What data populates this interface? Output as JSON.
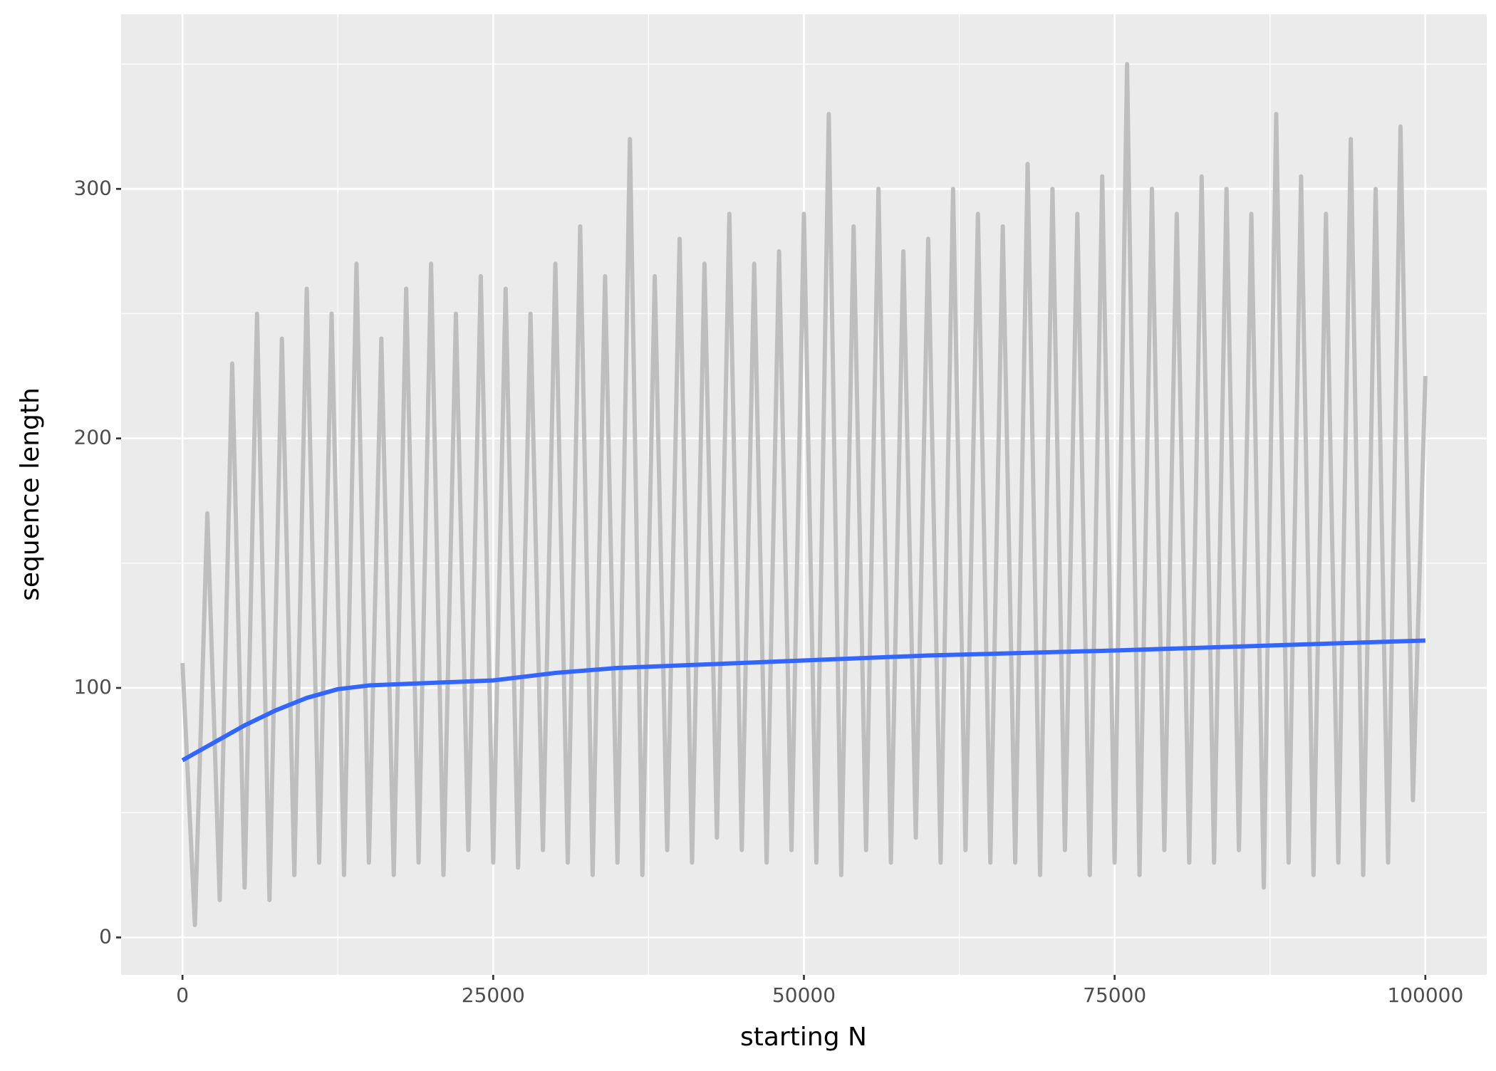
{
  "chart_data": {
    "type": "line",
    "x_label": "starting N",
    "y_label": "sequence length",
    "xlim": [
      -4938,
      104938
    ],
    "ylim": [
      -15,
      370
    ],
    "xticks": [
      0,
      25000,
      50000,
      75000,
      100000
    ],
    "yticks": [
      0,
      100,
      200,
      300
    ],
    "x_minor": [
      12500,
      37500,
      62500,
      87500
    ],
    "y_minor": [
      50,
      150,
      250,
      350
    ],
    "grid": true,
    "series": [
      {
        "color": "#bebebe",
        "x": [
          0,
          1000,
          2000,
          3000,
          4000,
          5000,
          6000,
          7000,
          8000,
          9000,
          10000,
          11000,
          12000,
          13000,
          14000,
          15000,
          16000,
          17000,
          18000,
          19000,
          20000,
          21000,
          22000,
          23000,
          24000,
          25000,
          26000,
          27000,
          28000,
          29000,
          30000,
          31000,
          32000,
          33000,
          34000,
          35000,
          36000,
          37000,
          38000,
          39000,
          40000,
          41000,
          42000,
          43000,
          44000,
          45000,
          46000,
          47000,
          48000,
          49000,
          50000,
          51000,
          52000,
          53000,
          54000,
          55000,
          56000,
          57000,
          58000,
          59000,
          60000,
          61000,
          62000,
          63000,
          64000,
          65000,
          66000,
          67000,
          68000,
          69000,
          70000,
          71000,
          72000,
          73000,
          74000,
          75000,
          76000,
          77000,
          78000,
          79000,
          80000,
          81000,
          82000,
          83000,
          84000,
          85000,
          86000,
          87000,
          88000,
          89000,
          90000,
          91000,
          92000,
          93000,
          94000,
          95000,
          96000,
          97000,
          98000,
          99000,
          100000
        ],
        "values": [
          110,
          5,
          170,
          15,
          230,
          20,
          250,
          15,
          240,
          25,
          260,
          30,
          250,
          25,
          270,
          30,
          240,
          25,
          260,
          30,
          270,
          25,
          250,
          35,
          265,
          30,
          260,
          28,
          250,
          35,
          270,
          30,
          285,
          25,
          265,
          30,
          320,
          25,
          265,
          35,
          280,
          30,
          270,
          40,
          290,
          35,
          270,
          30,
          275,
          35,
          290,
          30,
          330,
          25,
          285,
          35,
          300,
          30,
          275,
          40,
          280,
          30,
          300,
          35,
          290,
          30,
          285,
          30,
          310,
          25,
          300,
          35,
          290,
          25,
          305,
          30,
          350,
          25,
          300,
          35,
          290,
          30,
          305,
          30,
          300,
          35,
          290,
          20,
          330,
          30,
          305,
          25,
          290,
          30,
          320,
          25,
          300,
          30,
          325,
          55,
          225
        ]
      },
      {
        "color": "#3366ff",
        "x": [
          0,
          2500,
          5000,
          7500,
          10000,
          12500,
          15000,
          20000,
          25000,
          30000,
          35000,
          40000,
          50000,
          60000,
          75000,
          100000
        ],
        "values": [
          71,
          78,
          85,
          91,
          96,
          99.5,
          101,
          102,
          103,
          106,
          108,
          109,
          111,
          113,
          115,
          119
        ]
      }
    ]
  }
}
